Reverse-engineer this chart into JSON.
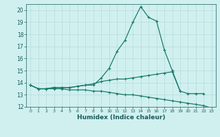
{
  "line1_x": [
    0,
    1,
    2,
    3,
    4,
    5,
    6,
    7,
    8,
    9,
    10,
    11,
    12,
    13,
    14,
    15,
    16,
    17,
    18,
    19,
    20,
    21,
    22
  ],
  "line1_y": [
    13.8,
    13.5,
    13.5,
    13.6,
    13.6,
    13.6,
    13.7,
    13.8,
    13.8,
    14.4,
    15.2,
    16.6,
    17.5,
    19.0,
    20.3,
    19.4,
    19.1,
    16.7,
    15.0,
    13.3,
    13.1,
    13.1,
    13.1
  ],
  "line2_x": [
    0,
    1,
    2,
    3,
    4,
    5,
    6,
    7,
    8,
    9,
    10,
    11,
    12,
    13,
    14,
    15,
    16,
    17,
    18,
    19
  ],
  "line2_y": [
    13.8,
    13.5,
    13.5,
    13.6,
    13.6,
    13.6,
    13.7,
    13.8,
    13.9,
    14.1,
    14.2,
    14.3,
    14.3,
    14.4,
    14.5,
    14.6,
    14.7,
    14.8,
    14.9,
    13.3
  ],
  "line3_x": [
    0,
    1,
    2,
    3,
    4,
    5,
    6,
    7,
    8,
    9,
    10,
    11,
    12,
    13,
    14,
    15,
    16,
    17,
    18,
    19,
    20,
    21,
    22,
    23
  ],
  "line3_y": [
    13.8,
    13.5,
    13.5,
    13.5,
    13.5,
    13.4,
    13.4,
    13.4,
    13.3,
    13.3,
    13.2,
    13.1,
    13.0,
    13.0,
    12.9,
    12.8,
    12.7,
    12.6,
    12.5,
    12.4,
    12.3,
    12.2,
    12.1,
    11.9
  ],
  "line_color": "#1a7a6a",
  "bg_color": "#d0f0f0",
  "grid_color": "#b8dada",
  "text_color": "#1a5a5a",
  "xlabel": "Humidex (Indice chaleur)",
  "ylim": [
    12,
    20.5
  ],
  "xlim": [
    -0.5,
    23.5
  ],
  "yticks": [
    12,
    13,
    14,
    15,
    16,
    17,
    18,
    19,
    20
  ],
  "xticks": [
    0,
    1,
    2,
    3,
    4,
    5,
    6,
    7,
    8,
    9,
    10,
    11,
    12,
    13,
    14,
    15,
    16,
    17,
    18,
    19,
    20,
    21,
    22,
    23
  ]
}
